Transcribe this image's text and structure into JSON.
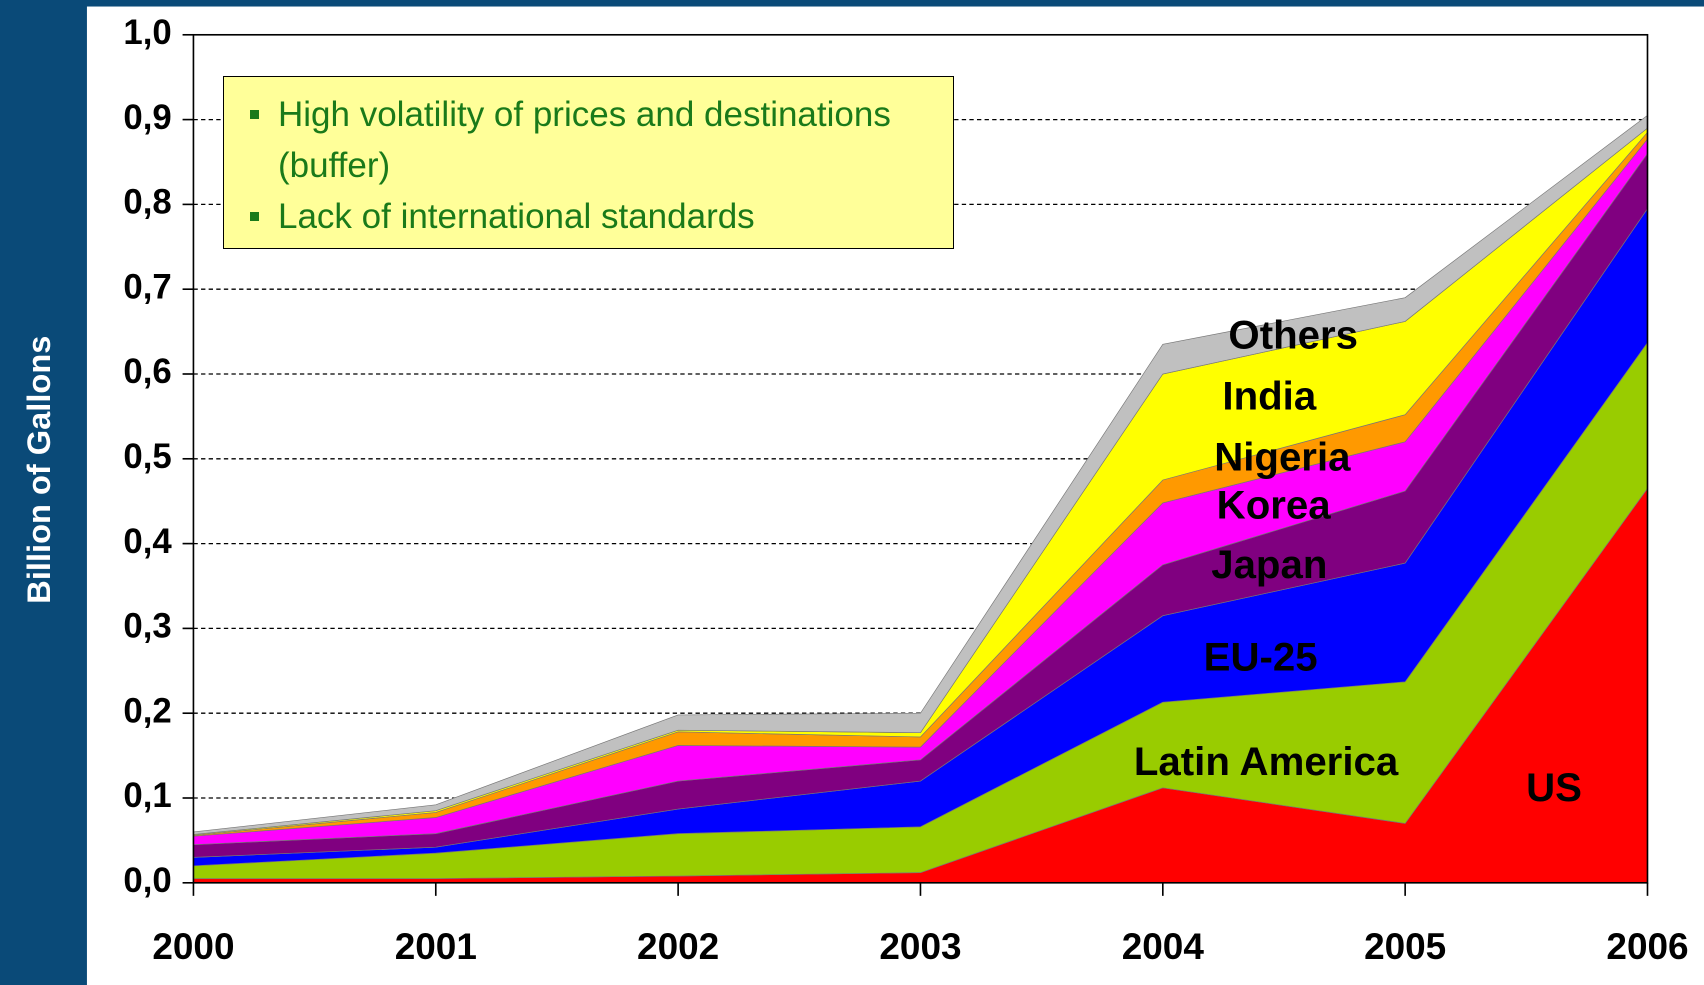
{
  "chart_data": {
    "type": "stacked_area",
    "y_label": "Billion of Gallons",
    "categories": [
      "2000",
      "2001",
      "2002",
      "2003",
      "2004",
      "2005",
      "2006"
    ],
    "ylim": [
      0,
      1
    ],
    "yticks": [
      {
        "value": 0,
        "label": "0,0"
      },
      {
        "value": 0.1,
        "label": "0,1"
      },
      {
        "value": 0.2,
        "label": "0,2"
      },
      {
        "value": 0.3,
        "label": "0,3"
      },
      {
        "value": 0.4,
        "label": "0,4"
      },
      {
        "value": 0.5,
        "label": "0,5"
      },
      {
        "value": 0.6,
        "label": "0,6"
      },
      {
        "value": 0.7,
        "label": "0,7"
      },
      {
        "value": 0.8,
        "label": "0,8"
      },
      {
        "value": 0.9,
        "label": "0,9"
      },
      {
        "value": 1,
        "label": "1,0"
      }
    ],
    "grid": true,
    "annotations": [
      "High volatility of prices and destinations (buffer)",
      "Lack of international standards"
    ],
    "series": [
      {
        "name": "US",
        "color": "#ff0000",
        "values": [
          0.005,
          0.005,
          0.008,
          0.012,
          0.112,
          0.07,
          0.465
        ]
      },
      {
        "name": "Latin America",
        "color": "#99cc00",
        "values": [
          0.015,
          0.03,
          0.05,
          0.054,
          0.101,
          0.167,
          0.172
        ]
      },
      {
        "name": "EU-25",
        "color": "#0000ff",
        "values": [
          0.01,
          0.007,
          0.029,
          0.054,
          0.102,
          0.14,
          0.158
        ]
      },
      {
        "name": "Japan",
        "color": "#800080",
        "values": [
          0.015,
          0.016,
          0.033,
          0.025,
          0.06,
          0.085,
          0.065
        ]
      },
      {
        "name": "Korea",
        "color": "#ff00ff",
        "values": [
          0.01,
          0.019,
          0.042,
          0.015,
          0.073,
          0.058,
          0.017
        ]
      },
      {
        "name": "Nigeria",
        "color": "#ff9900",
        "values": [
          0.001,
          0.006,
          0.016,
          0.012,
          0.027,
          0.032,
          0.008
        ]
      },
      {
        "name": "India",
        "color": "#ffff00",
        "values": [
          0.001,
          0.002,
          0.002,
          0.005,
          0.125,
          0.11,
          0.005
        ]
      },
      {
        "name": "Others",
        "color": "#c0c0c0",
        "values": [
          0.003,
          0.007,
          0.018,
          0.023,
          0.035,
          0.028,
          0.015
        ]
      }
    ]
  }
}
